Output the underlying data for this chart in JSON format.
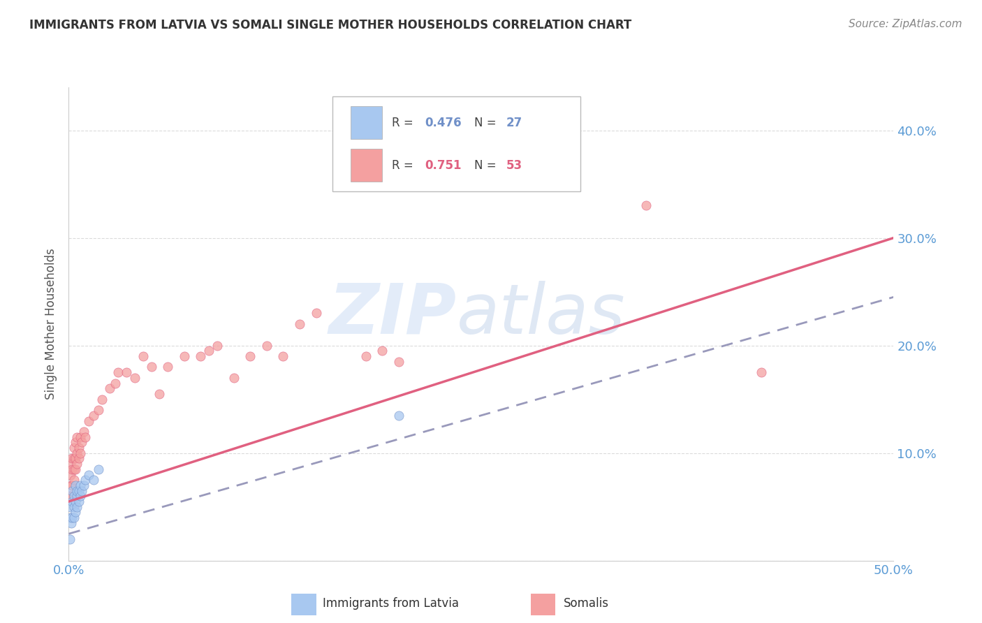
{
  "title": "IMMIGRANTS FROM LATVIA VS SOMALI SINGLE MOTHER HOUSEHOLDS CORRELATION CHART",
  "source": "Source: ZipAtlas.com",
  "ylabel": "Single Mother Households",
  "xlim": [
    0.0,
    0.5
  ],
  "ylim": [
    0.0,
    0.44
  ],
  "xticks": [
    0.0,
    0.1,
    0.2,
    0.3,
    0.4,
    0.5
  ],
  "yticks": [
    0.0,
    0.1,
    0.2,
    0.3,
    0.4
  ],
  "xtick_labels": [
    "0.0%",
    "",
    "",
    "",
    "",
    "50.0%"
  ],
  "ytick_labels_right": [
    "",
    "10.0%",
    "20.0%",
    "30.0%",
    "40.0%"
  ],
  "color_blue": "#a8c8f0",
  "color_pink": "#f4a0a0",
  "line_blue_color": "#7090c8",
  "line_pink_color": "#e06080",
  "grid_color": "#d8d8d8",
  "background": "#ffffff",
  "somali_line_start_y": 0.055,
  "somali_line_end_y": 0.3,
  "latvia_line_start_y": 0.025,
  "latvia_line_end_y": 0.245,
  "latvia_points": [
    [
      0.0005,
      0.02
    ],
    [
      0.001,
      0.04
    ],
    [
      0.001,
      0.05
    ],
    [
      0.0015,
      0.035
    ],
    [
      0.002,
      0.04
    ],
    [
      0.002,
      0.055
    ],
    [
      0.002,
      0.065
    ],
    [
      0.003,
      0.04
    ],
    [
      0.003,
      0.05
    ],
    [
      0.003,
      0.06
    ],
    [
      0.004,
      0.045
    ],
    [
      0.004,
      0.055
    ],
    [
      0.004,
      0.07
    ],
    [
      0.005,
      0.05
    ],
    [
      0.005,
      0.06
    ],
    [
      0.005,
      0.065
    ],
    [
      0.006,
      0.055
    ],
    [
      0.006,
      0.065
    ],
    [
      0.007,
      0.06
    ],
    [
      0.007,
      0.07
    ],
    [
      0.008,
      0.065
    ],
    [
      0.009,
      0.07
    ],
    [
      0.01,
      0.075
    ],
    [
      0.012,
      0.08
    ],
    [
      0.015,
      0.075
    ],
    [
      0.018,
      0.085
    ],
    [
      0.2,
      0.135
    ]
  ],
  "somali_points": [
    [
      0.0005,
      0.06
    ],
    [
      0.001,
      0.06
    ],
    [
      0.001,
      0.08
    ],
    [
      0.001,
      0.09
    ],
    [
      0.0015,
      0.07
    ],
    [
      0.002,
      0.07
    ],
    [
      0.002,
      0.085
    ],
    [
      0.002,
      0.095
    ],
    [
      0.003,
      0.075
    ],
    [
      0.003,
      0.085
    ],
    [
      0.003,
      0.095
    ],
    [
      0.003,
      0.105
    ],
    [
      0.004,
      0.085
    ],
    [
      0.004,
      0.095
    ],
    [
      0.004,
      0.11
    ],
    [
      0.005,
      0.09
    ],
    [
      0.005,
      0.1
    ],
    [
      0.005,
      0.115
    ],
    [
      0.006,
      0.095
    ],
    [
      0.006,
      0.105
    ],
    [
      0.007,
      0.1
    ],
    [
      0.007,
      0.115
    ],
    [
      0.008,
      0.11
    ],
    [
      0.009,
      0.12
    ],
    [
      0.01,
      0.115
    ],
    [
      0.012,
      0.13
    ],
    [
      0.015,
      0.135
    ],
    [
      0.018,
      0.14
    ],
    [
      0.02,
      0.15
    ],
    [
      0.025,
      0.16
    ],
    [
      0.028,
      0.165
    ],
    [
      0.03,
      0.175
    ],
    [
      0.035,
      0.175
    ],
    [
      0.04,
      0.17
    ],
    [
      0.045,
      0.19
    ],
    [
      0.05,
      0.18
    ],
    [
      0.055,
      0.155
    ],
    [
      0.06,
      0.18
    ],
    [
      0.07,
      0.19
    ],
    [
      0.08,
      0.19
    ],
    [
      0.085,
      0.195
    ],
    [
      0.09,
      0.2
    ],
    [
      0.1,
      0.17
    ],
    [
      0.11,
      0.19
    ],
    [
      0.12,
      0.2
    ],
    [
      0.13,
      0.19
    ],
    [
      0.14,
      0.22
    ],
    [
      0.15,
      0.23
    ],
    [
      0.18,
      0.19
    ],
    [
      0.19,
      0.195
    ],
    [
      0.2,
      0.185
    ],
    [
      0.35,
      0.33
    ],
    [
      0.42,
      0.175
    ]
  ]
}
